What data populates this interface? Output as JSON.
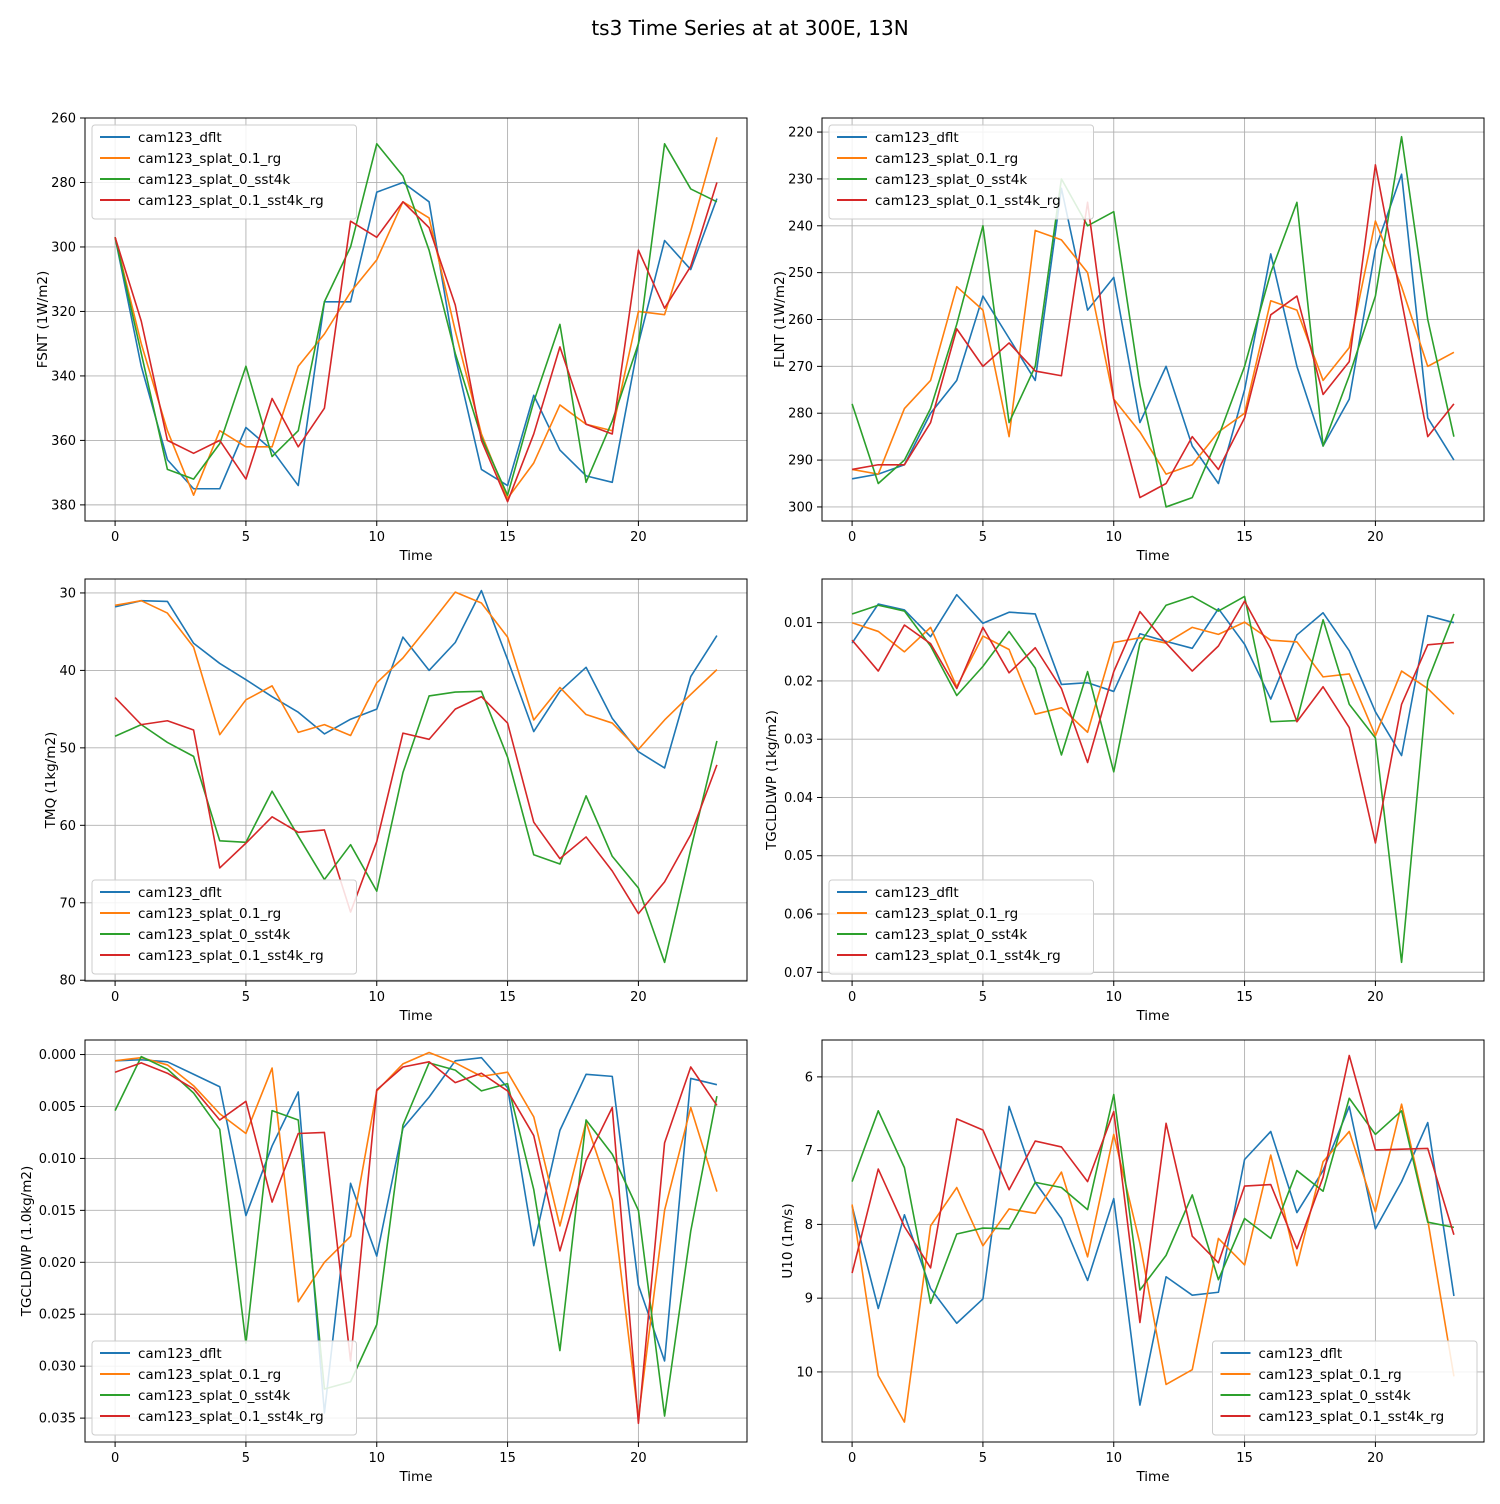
{
  "figure": {
    "title": "ts3 Time Series at at 300E, 13N"
  },
  "colors": {
    "series": [
      "#1f77b4",
      "#ff7f0e",
      "#2ca02c",
      "#d62728"
    ],
    "grid": "#b0b0b0",
    "axis": "#000000"
  },
  "chart_data": [
    {
      "type": "line",
      "title": "",
      "xlabel": "Time",
      "ylabel": "FSNT (1W/m2)",
      "xlim": [
        -1.15,
        24.15
      ],
      "ylim": [
        260,
        385
      ],
      "y_inverted": true,
      "xticks": [
        0,
        5,
        10,
        15,
        20
      ],
      "yticks": [
        260,
        280,
        300,
        320,
        340,
        360,
        380
      ],
      "ytick_labels": [
        "260",
        "280",
        "300",
        "320",
        "340",
        "360",
        "380"
      ],
      "grid": true,
      "legend": "upper-left",
      "x": [
        0,
        1,
        2,
        3,
        4,
        5,
        6,
        7,
        8,
        9,
        10,
        11,
        12,
        13,
        14,
        15,
        16,
        17,
        18,
        19,
        20,
        21,
        22,
        23
      ],
      "series": [
        {
          "name": "cam123_dflt",
          "values": [
            297,
            337,
            366,
            375,
            375,
            356,
            363,
            374,
            317,
            317,
            283,
            280,
            286,
            334,
            369,
            374,
            346,
            363,
            371,
            373,
            330,
            298,
            307,
            285
          ]
        },
        {
          "name": "cam123_splat_0.1_rg",
          "values": [
            297,
            330,
            357,
            377,
            357,
            362,
            362,
            337,
            327,
            314,
            304,
            286,
            291,
            326,
            358,
            378,
            367,
            349,
            355,
            357,
            320,
            321,
            295,
            266
          ]
        },
        {
          "name": "cam123_splat_0_sst4k",
          "values": [
            297,
            333,
            369,
            372,
            361,
            337,
            365,
            357,
            317,
            300,
            268,
            278,
            301,
            333,
            359,
            377,
            348,
            324,
            373,
            354,
            330,
            268,
            282,
            286
          ]
        },
        {
          "name": "cam123_splat_0.1_sst4k_rg",
          "values": [
            297,
            323,
            360,
            364,
            360,
            372,
            347,
            362,
            350,
            292,
            297,
            286,
            294,
            318,
            360,
            379,
            358,
            331,
            355,
            358,
            301,
            319,
            306,
            280
          ]
        }
      ]
    },
    {
      "type": "line",
      "title": "",
      "xlabel": "Time",
      "ylabel": "FLNT (1W/m2)",
      "xlim": [
        -1.15,
        24.15
      ],
      "ylim": [
        217,
        303
      ],
      "y_inverted": true,
      "xticks": [
        0,
        5,
        10,
        15,
        20
      ],
      "yticks": [
        220,
        230,
        240,
        250,
        260,
        270,
        280,
        290,
        300
      ],
      "ytick_labels": [
        "220",
        "230",
        "240",
        "250",
        "260",
        "270",
        "280",
        "290",
        "300"
      ],
      "grid": true,
      "legend": "upper-left",
      "x": [
        0,
        1,
        2,
        3,
        4,
        5,
        6,
        7,
        8,
        9,
        10,
        11,
        12,
        13,
        14,
        15,
        16,
        17,
        18,
        19,
        20,
        21,
        22,
        23
      ],
      "series": [
        {
          "name": "cam123_dflt",
          "values": [
            294,
            293,
            291,
            280,
            273,
            255,
            264,
            273,
            232,
            258,
            251,
            282,
            270,
            287,
            295,
            275,
            246,
            270,
            287,
            277,
            245,
            229,
            281,
            290
          ]
        },
        {
          "name": "cam123_splat_0.1_rg",
          "values": [
            292,
            293,
            279,
            273,
            253,
            258,
            285,
            241,
            243,
            250,
            277,
            284,
            293,
            291,
            284,
            280,
            256,
            258,
            273,
            266,
            239,
            253,
            270,
            267
          ]
        },
        {
          "name": "cam123_splat_0_sst4k",
          "values": [
            278,
            295,
            290,
            279,
            261,
            240,
            282,
            270,
            230,
            240,
            237,
            274,
            300,
            298,
            285,
            270,
            250,
            235,
            287,
            272,
            255,
            221,
            260,
            285
          ]
        },
        {
          "name": "cam123_splat_0.1_sst4k_rg",
          "values": [
            292,
            291,
            291,
            282,
            262,
            270,
            265,
            271,
            272,
            235,
            277,
            298,
            295,
            285,
            292,
            281,
            259,
            255,
            276,
            269,
            227,
            256,
            285,
            278
          ]
        }
      ]
    },
    {
      "type": "line",
      "title": "",
      "xlabel": "Time",
      "ylabel": "TMQ (1kg/m2)",
      "xlim": [
        -1.15,
        24.15
      ],
      "ylim": [
        28.2,
        80.1
      ],
      "y_inverted": true,
      "xticks": [
        0,
        5,
        10,
        15,
        20
      ],
      "yticks": [
        30,
        40,
        50,
        60,
        70,
        80
      ],
      "ytick_labels": [
        "30",
        "40",
        "50",
        "60",
        "70",
        "80"
      ],
      "grid": true,
      "legend": "lower-left",
      "x": [
        0,
        1,
        2,
        3,
        4,
        5,
        6,
        7,
        8,
        9,
        10,
        11,
        12,
        13,
        14,
        15,
        16,
        17,
        18,
        19,
        20,
        21,
        22,
        23
      ],
      "series": [
        {
          "name": "cam123_dflt",
          "values": [
            31.8,
            31.0,
            31.1,
            36.5,
            39.1,
            41.2,
            43.4,
            45.4,
            48.2,
            46.3,
            45.0,
            35.7,
            40.0,
            36.4,
            29.7,
            38.6,
            47.9,
            42.7,
            39.6,
            46.2,
            50.5,
            52.6,
            40.8,
            35.5
          ]
        },
        {
          "name": "cam123_splat_0.1_rg",
          "values": [
            31.6,
            31.0,
            32.6,
            37.0,
            48.3,
            43.8,
            42.0,
            48.0,
            47.0,
            48.4,
            41.6,
            38.4,
            34.2,
            29.9,
            31.3,
            35.7,
            46.4,
            42.2,
            45.7,
            46.8,
            50.2,
            46.4,
            43.1,
            39.9
          ]
        },
        {
          "name": "cam123_splat_0_sst4k",
          "values": [
            48.5,
            47.0,
            49.3,
            51.1,
            62.0,
            62.2,
            55.6,
            61.4,
            67.0,
            62.5,
            68.5,
            53.2,
            43.3,
            42.8,
            42.7,
            51.2,
            63.8,
            65.0,
            56.2,
            64.0,
            68.1,
            77.7,
            63.1,
            49.1
          ]
        },
        {
          "name": "cam123_splat_0.1_sst4k_rg",
          "values": [
            43.5,
            47.0,
            46.5,
            47.7,
            65.5,
            62.3,
            58.9,
            60.9,
            60.6,
            71.2,
            62.1,
            48.1,
            48.9,
            45.0,
            43.4,
            46.8,
            59.6,
            64.3,
            61.5,
            65.9,
            71.4,
            67.3,
            61.2,
            52.2
          ]
        }
      ]
    },
    {
      "type": "line",
      "title": "",
      "xlabel": "Time",
      "ylabel": "TGCLDLWP (1kg/m2)",
      "xlim": [
        -1.15,
        24.15
      ],
      "ylim": [
        0.0025,
        0.0715
      ],
      "y_inverted": true,
      "xticks": [
        0,
        5,
        10,
        15,
        20
      ],
      "yticks": [
        0.01,
        0.02,
        0.03,
        0.04,
        0.05,
        0.06,
        0.07
      ],
      "ytick_labels": [
        "0.01",
        "0.02",
        "0.03",
        "0.04",
        "0.05",
        "0.06",
        "0.07"
      ],
      "grid": true,
      "legend": "lower-left",
      "x": [
        0,
        1,
        2,
        3,
        4,
        5,
        6,
        7,
        8,
        9,
        10,
        11,
        12,
        13,
        14,
        15,
        16,
        17,
        18,
        19,
        20,
        21,
        22,
        23
      ],
      "series": [
        {
          "name": "cam123_dflt",
          "values": [
            0.0135,
            0.0068,
            0.0078,
            0.0124,
            0.0052,
            0.0101,
            0.0082,
            0.0085,
            0.0206,
            0.0203,
            0.0218,
            0.0119,
            0.0132,
            0.0144,
            0.0076,
            0.0137,
            0.0231,
            0.0121,
            0.0083,
            0.0148,
            0.0253,
            0.0328,
            0.0088,
            0.01
          ]
        },
        {
          "name": "cam123_splat_0.1_rg",
          "values": [
            0.01,
            0.0115,
            0.015,
            0.0108,
            0.021,
            0.0123,
            0.0146,
            0.0257,
            0.0246,
            0.0288,
            0.0134,
            0.0126,
            0.0135,
            0.0108,
            0.012,
            0.0099,
            0.013,
            0.0133,
            0.0193,
            0.0188,
            0.0294,
            0.0183,
            0.0213,
            0.0257
          ]
        },
        {
          "name": "cam123_splat_0_sst4k",
          "values": [
            0.0085,
            0.007,
            0.008,
            0.014,
            0.0225,
            0.0175,
            0.0115,
            0.0178,
            0.0327,
            0.0184,
            0.0356,
            0.0135,
            0.007,
            0.0055,
            0.008,
            0.0055,
            0.027,
            0.0268,
            0.0095,
            0.024,
            0.0298,
            0.0683,
            0.02,
            0.0085
          ]
        },
        {
          "name": "cam123_splat_0.1_sst4k_rg",
          "values": [
            0.013,
            0.0183,
            0.0104,
            0.0136,
            0.0213,
            0.0108,
            0.0186,
            0.0143,
            0.0213,
            0.034,
            0.0184,
            0.0081,
            0.0135,
            0.0183,
            0.014,
            0.0063,
            0.0145,
            0.027,
            0.021,
            0.028,
            0.0478,
            0.024,
            0.0138,
            0.0134
          ]
        }
      ]
    },
    {
      "type": "line",
      "title": "",
      "xlabel": "Time",
      "ylabel": "TGCLDIWP (1.0kg/m2)",
      "xlim": [
        -1.15,
        24.15
      ],
      "ylim": [
        -0.0014,
        0.0373
      ],
      "y_inverted": true,
      "xticks": [
        0,
        5,
        10,
        15,
        20
      ],
      "yticks": [
        0.0,
        0.005,
        0.01,
        0.015,
        0.02,
        0.025,
        0.03,
        0.035
      ],
      "ytick_labels": [
        "0.000",
        "0.005",
        "0.010",
        "0.015",
        "0.020",
        "0.025",
        "0.030",
        "0.035"
      ],
      "grid": true,
      "legend": "lower-left",
      "x": [
        0,
        1,
        2,
        3,
        4,
        5,
        6,
        7,
        8,
        9,
        10,
        11,
        12,
        13,
        14,
        15,
        16,
        17,
        18,
        19,
        20,
        21,
        22,
        23
      ],
      "series": [
        {
          "name": "cam123_dflt",
          "values": [
            0.0006,
            0.0005,
            0.0007,
            0.0019,
            0.0031,
            0.0155,
            0.0088,
            0.0036,
            0.0345,
            0.0124,
            0.0194,
            0.0071,
            0.0041,
            0.0006,
            0.0003,
            0.0032,
            0.0184,
            0.0073,
            0.0019,
            0.0021,
            0.0222,
            0.0295,
            0.0023,
            0.0029
          ]
        },
        {
          "name": "cam123_splat_0.1_rg",
          "values": [
            0.0006,
            0.0003,
            0.001,
            0.003,
            0.0057,
            0.0076,
            0.0013,
            0.0238,
            0.02,
            0.0175,
            0.0035,
            0.0009,
            -0.0002,
            0.0008,
            0.0021,
            0.0017,
            0.006,
            0.0165,
            0.0065,
            0.014,
            0.035,
            0.015,
            0.0051,
            0.0132
          ]
        },
        {
          "name": "cam123_splat_0_sst4k",
          "values": [
            0.0054,
            0.0002,
            0.0014,
            0.0037,
            0.0072,
            0.0278,
            0.0054,
            0.0063,
            0.0322,
            0.0315,
            0.026,
            0.0068,
            0.0008,
            0.0015,
            0.0035,
            0.0028,
            0.013,
            0.0285,
            0.0063,
            0.0096,
            0.015,
            0.0348,
            0.017,
            0.004
          ]
        },
        {
          "name": "cam123_splat_0.1_sst4k_rg",
          "values": [
            0.0017,
            0.0008,
            0.0018,
            0.0033,
            0.0063,
            0.0045,
            0.0142,
            0.0076,
            0.0075,
            0.0295,
            0.0034,
            0.0012,
            0.0007,
            0.0027,
            0.0018,
            0.0035,
            0.0078,
            0.0189,
            0.0102,
            0.0051,
            0.0355,
            0.0085,
            0.0012,
            0.0049
          ]
        }
      ]
    },
    {
      "type": "line",
      "title": "",
      "xlabel": "Time",
      "ylabel": "U10 (1m/s)",
      "xlim": [
        -1.15,
        24.15
      ],
      "ylim": [
        5.5,
        10.95
      ],
      "y_inverted": true,
      "xticks": [
        0,
        5,
        10,
        15,
        20
      ],
      "yticks": [
        6,
        7,
        8,
        9,
        10
      ],
      "ytick_labels": [
        "6",
        "7",
        "8",
        "9",
        "10"
      ],
      "grid": true,
      "legend": "lower-right",
      "x": [
        0,
        1,
        2,
        3,
        4,
        5,
        6,
        7,
        8,
        9,
        10,
        11,
        12,
        13,
        14,
        15,
        16,
        17,
        18,
        19,
        20,
        21,
        22,
        23
      ],
      "series": [
        {
          "name": "cam123_dflt",
          "values": [
            7.75,
            9.14,
            7.87,
            8.87,
            9.34,
            9.01,
            6.4,
            7.43,
            7.92,
            8.76,
            7.65,
            10.45,
            8.71,
            8.96,
            8.92,
            7.12,
            6.74,
            7.84,
            7.27,
            6.4,
            8.06,
            7.42,
            6.62,
            8.97
          ]
        },
        {
          "name": "cam123_splat_0.1_rg",
          "values": [
            7.73,
            10.05,
            10.68,
            8.02,
            7.5,
            8.29,
            7.79,
            7.85,
            7.29,
            8.44,
            6.78,
            8.26,
            10.17,
            9.97,
            8.19,
            8.55,
            7.06,
            8.56,
            7.15,
            6.74,
            7.83,
            6.37,
            7.94,
            10.06
          ]
        },
        {
          "name": "cam123_splat_0_sst4k",
          "values": [
            7.42,
            6.46,
            7.23,
            9.07,
            8.13,
            8.05,
            8.06,
            7.43,
            7.5,
            7.8,
            6.24,
            8.89,
            8.42,
            7.6,
            8.75,
            7.92,
            8.19,
            7.27,
            7.55,
            6.29,
            6.78,
            6.46,
            7.97,
            8.04
          ]
        },
        {
          "name": "cam123_splat_0.1_sst4k_rg",
          "values": [
            8.66,
            7.25,
            8.03,
            8.59,
            6.57,
            6.72,
            7.53,
            6.87,
            6.95,
            7.42,
            6.47,
            9.33,
            6.63,
            8.16,
            8.52,
            7.48,
            7.46,
            8.33,
            7.36,
            5.71,
            6.99,
            6.98,
            6.97,
            8.14
          ]
        }
      ]
    }
  ]
}
